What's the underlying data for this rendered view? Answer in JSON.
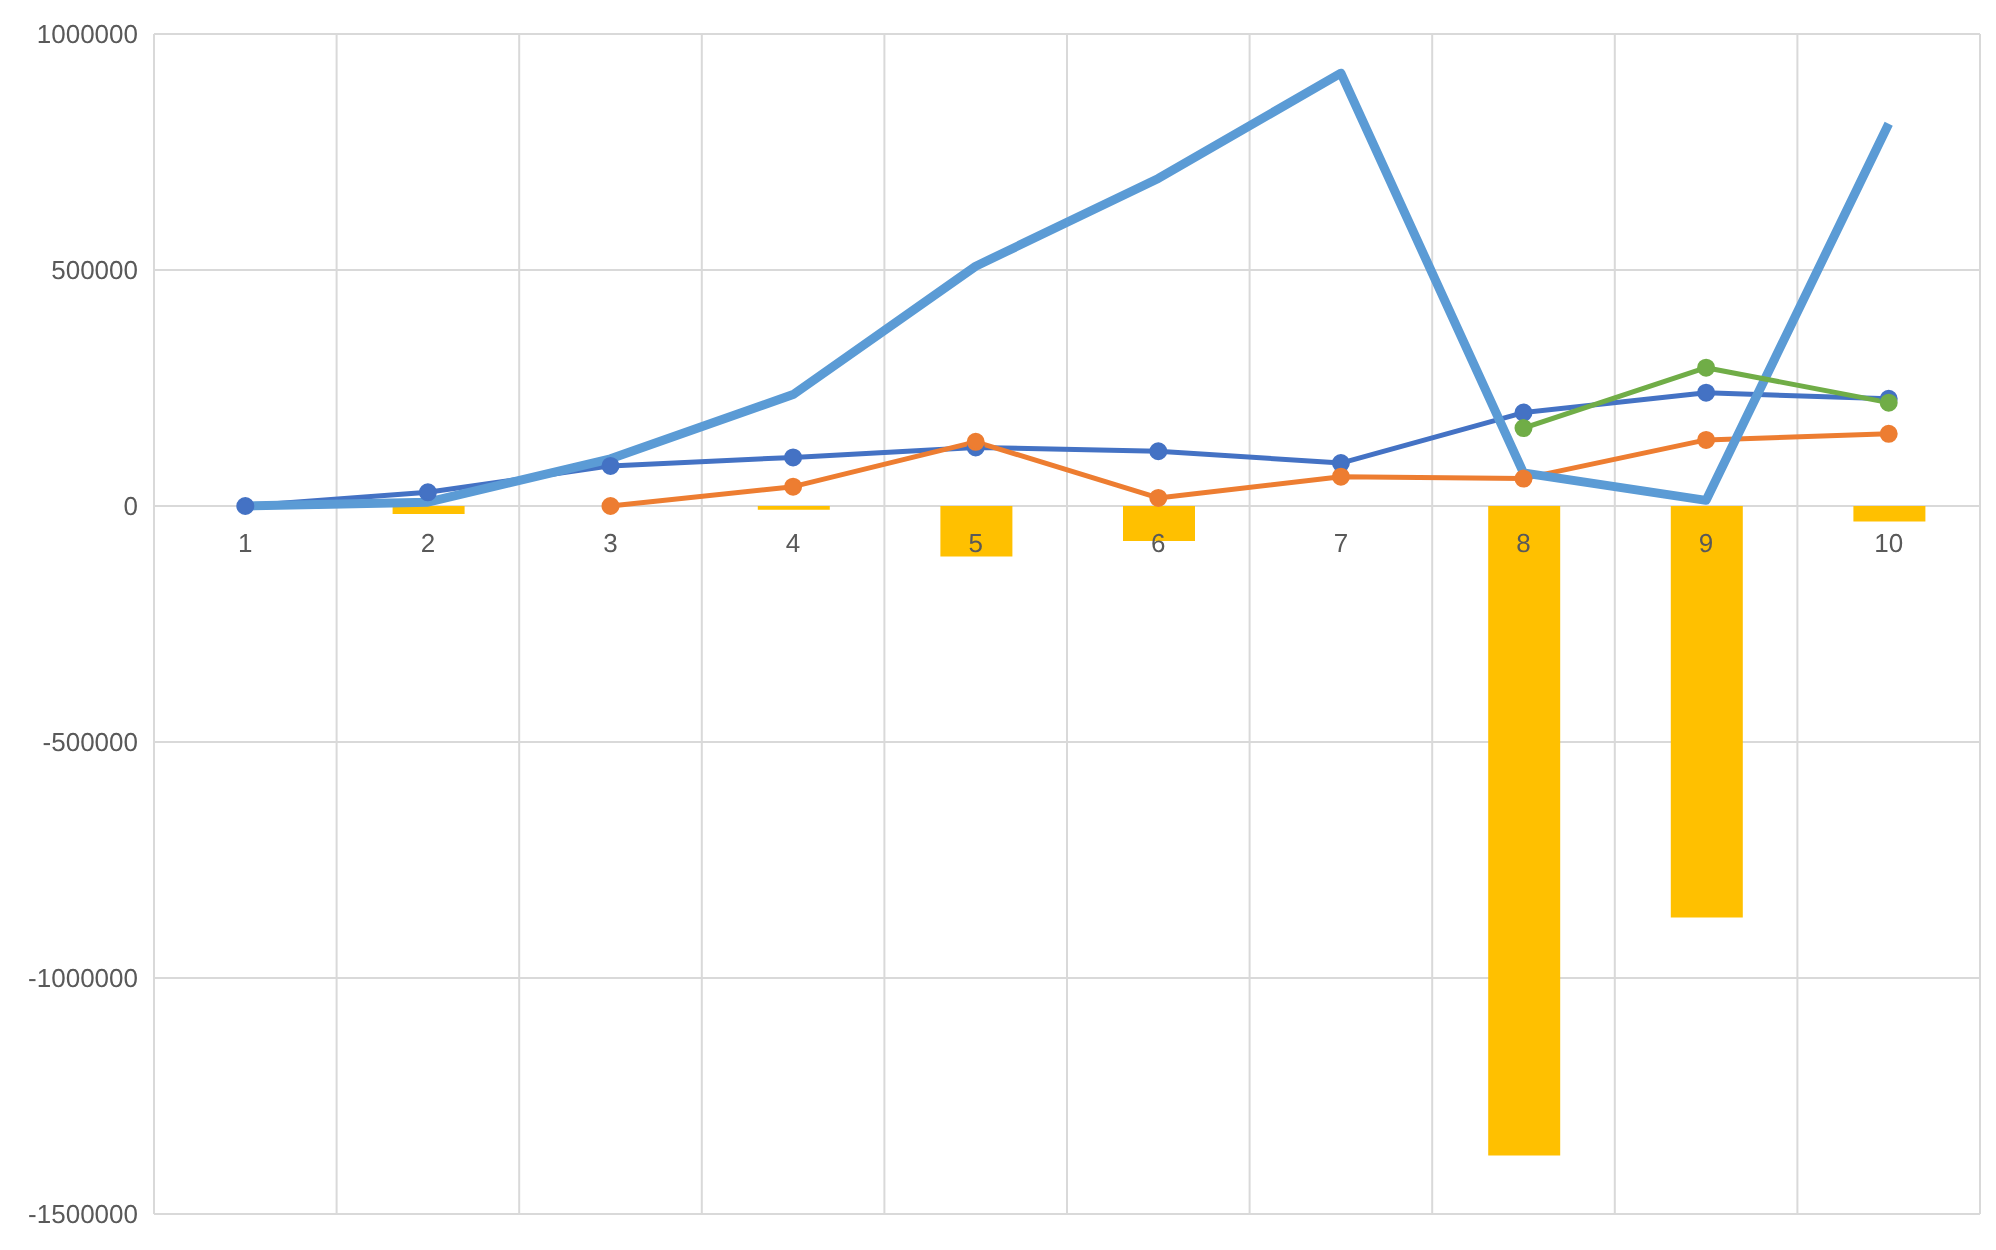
{
  "chart_data": {
    "type": "line",
    "categories": [
      "1",
      "2",
      "3",
      "4",
      "5",
      "6",
      "7",
      "8",
      "9",
      "10"
    ],
    "series": [
      {
        "type": "bar",
        "color": "#ffc000",
        "values": [
          null,
          -17000,
          null,
          -8000,
          -107000,
          -74000,
          null,
          -1376000,
          -872000,
          -33000
        ]
      },
      {
        "color": "#4472c4",
        "marker": "circle",
        "values": [
          0,
          29000,
          85000,
          103000,
          124000,
          116000,
          91000,
          198000,
          240000,
          227000
        ]
      },
      {
        "color": "#ed7d31",
        "marker": "circle",
        "values": [
          null,
          null,
          0,
          41000,
          136000,
          17000,
          62000,
          58000,
          140000,
          153000
        ]
      },
      {
        "color": "#5b9bd5",
        "marker": "none",
        "values": [
          0,
          8000,
          100000,
          236000,
          508000,
          694000,
          917000,
          70000,
          12000,
          810000
        ]
      },
      {
        "color": "#70ad47",
        "marker": "circle",
        "values": [
          null,
          null,
          null,
          null,
          null,
          null,
          null,
          165000,
          293000,
          219000
        ]
      }
    ],
    "ylim": [
      -1500000,
      1000000
    ],
    "yticks": [
      -1500000,
      -1000000,
      -500000,
      0,
      500000,
      1000000
    ],
    "grid": true,
    "legend": false
  }
}
